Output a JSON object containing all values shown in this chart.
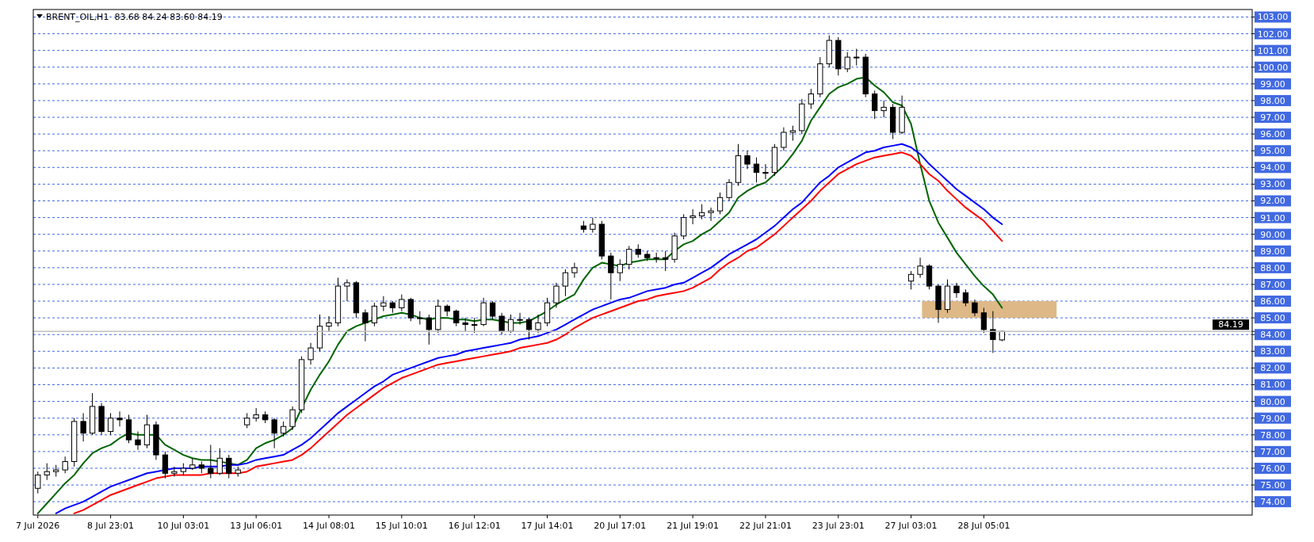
{
  "chart_data": {
    "type": "candlestick",
    "title": "BRENT_OIL,H1  83.68 84.24 83.60 84.19",
    "categories": [
      "7 Jul 2026",
      null,
      null,
      null,
      null,
      null,
      null,
      null,
      "8 Jul 23:01",
      null,
      null,
      null,
      null,
      null,
      null,
      null,
      "10 Jul 03:01",
      null,
      null,
      null,
      null,
      null,
      null,
      null,
      "13 Jul 06:01",
      null,
      null,
      null,
      null,
      null,
      null,
      null,
      "14 Jul 08:01",
      null,
      null,
      null,
      null,
      null,
      null,
      null,
      "15 Jul 10:01",
      null,
      null,
      null,
      null,
      null,
      null,
      null,
      "16 Jul 12:01",
      null,
      null,
      null,
      null,
      null,
      null,
      null,
      "17 Jul 14:01",
      null,
      null,
      null,
      null,
      null,
      null,
      null,
      "20 Jul 17:01",
      null,
      null,
      null,
      null,
      null,
      null,
      null,
      "21 Jul 19:01",
      null,
      null,
      null,
      null,
      null,
      null,
      null,
      "22 Jul 21:01",
      null,
      null,
      null,
      null,
      null,
      null,
      null,
      "23 Jul 23:01",
      null,
      null,
      null,
      null,
      null,
      null,
      null,
      "27 Jul 03:01",
      null,
      null,
      null,
      null,
      null,
      null,
      null,
      "28 Jul 05:01",
      null,
      null
    ],
    "ohlc": [
      [
        74.8,
        75.8,
        74.5,
        75.6
      ],
      [
        75.6,
        76.3,
        75.3,
        75.8
      ],
      [
        75.8,
        76.2,
        75.5,
        75.9
      ],
      [
        75.9,
        76.7,
        75.7,
        76.4
      ],
      [
        76.4,
        79.0,
        76.1,
        78.8
      ],
      [
        78.8,
        79.3,
        77.6,
        78.1
      ],
      [
        78.1,
        80.5,
        78.0,
        79.7
      ],
      [
        79.7,
        79.9,
        78.0,
        78.2
      ],
      [
        78.2,
        79.3,
        78.0,
        79.0
      ],
      [
        79.0,
        79.4,
        78.5,
        78.9
      ],
      [
        78.9,
        79.2,
        77.5,
        77.7
      ],
      [
        77.7,
        78.2,
        77.1,
        77.4
      ],
      [
        77.4,
        79.2,
        77.2,
        78.6
      ],
      [
        78.6,
        78.8,
        76.5,
        76.8
      ],
      [
        76.8,
        77.0,
        75.4,
        75.7
      ],
      [
        75.7,
        76.1,
        75.5,
        75.8
      ],
      [
        75.8,
        76.3,
        75.6,
        76.0
      ],
      [
        76.0,
        76.6,
        75.9,
        76.2
      ],
      [
        76.2,
        76.4,
        75.7,
        76.0
      ],
      [
        76.0,
        77.4,
        75.4,
        75.7
      ],
      [
        75.7,
        77.2,
        75.6,
        76.6
      ],
      [
        76.6,
        76.8,
        75.4,
        75.7
      ],
      [
        75.7,
        76.1,
        75.5,
        75.9
      ],
      [
        78.6,
        79.3,
        78.4,
        79.0
      ],
      [
        79.0,
        79.6,
        78.8,
        79.2
      ],
      [
        79.2,
        79.4,
        78.7,
        78.9
      ],
      [
        78.9,
        79.0,
        77.2,
        78.1
      ],
      [
        78.1,
        78.8,
        77.9,
        78.5
      ],
      [
        78.5,
        79.7,
        78.3,
        79.5
      ],
      [
        79.5,
        82.7,
        79.3,
        82.5
      ],
      [
        82.5,
        83.5,
        82.2,
        83.2
      ],
      [
        83.2,
        85.2,
        83.0,
        84.5
      ],
      [
        84.5,
        85.1,
        84.2,
        84.7
      ],
      [
        84.7,
        87.4,
        84.5,
        86.9
      ],
      [
        86.9,
        87.3,
        86.0,
        87.1
      ],
      [
        87.1,
        87.2,
        85.0,
        85.3
      ],
      [
        85.3,
        85.5,
        83.6,
        84.7
      ],
      [
        84.7,
        85.9,
        84.5,
        85.7
      ],
      [
        85.7,
        86.3,
        85.4,
        85.9
      ],
      [
        85.9,
        86.0,
        85.3,
        85.6
      ],
      [
        85.6,
        86.4,
        85.4,
        86.1
      ],
      [
        86.1,
        86.2,
        84.8,
        85.0
      ],
      [
        85.0,
        85.4,
        84.6,
        85.0
      ],
      [
        85.0,
        85.2,
        83.4,
        84.3
      ],
      [
        84.3,
        86.1,
        84.1,
        85.7
      ],
      [
        85.7,
        85.8,
        85.1,
        85.4
      ],
      [
        85.4,
        85.5,
        84.5,
        84.7
      ],
      [
        84.7,
        85.0,
        84.2,
        84.6
      ],
      [
        84.6,
        85.0,
        84.1,
        84.6
      ],
      [
        84.6,
        86.2,
        84.5,
        85.9
      ],
      [
        85.9,
        86.0,
        84.9,
        85.1
      ],
      [
        85.1,
        85.3,
        84.0,
        84.2
      ],
      [
        84.2,
        85.2,
        84.1,
        84.9
      ],
      [
        84.9,
        85.3,
        84.6,
        84.9
      ],
      [
        84.9,
        85.0,
        83.7,
        84.3
      ],
      [
        84.3,
        85.2,
        84.1,
        84.7
      ],
      [
        84.7,
        86.2,
        84.5,
        85.9
      ],
      [
        85.9,
        87.1,
        85.6,
        86.9
      ],
      [
        86.9,
        87.9,
        86.3,
        87.7
      ],
      [
        87.7,
        88.3,
        87.4,
        88.0
      ],
      [
        90.5,
        90.8,
        90.1,
        90.3
      ],
      [
        90.3,
        91.0,
        90.1,
        90.6
      ],
      [
        90.6,
        90.8,
        88.5,
        88.7
      ],
      [
        88.7,
        88.9,
        86.1,
        87.7
      ],
      [
        87.7,
        88.5,
        87.2,
        88.2
      ],
      [
        88.2,
        89.3,
        87.9,
        89.1
      ],
      [
        89.1,
        89.4,
        88.6,
        88.8
      ],
      [
        88.8,
        89.0,
        88.4,
        88.6
      ],
      [
        88.6,
        88.9,
        88.3,
        88.6
      ],
      [
        88.6,
        89.0,
        87.8,
        88.5
      ],
      [
        88.5,
        90.1,
        88.3,
        89.9
      ],
      [
        89.9,
        91.2,
        89.7,
        91.0
      ],
      [
        91.0,
        91.5,
        90.6,
        91.1
      ],
      [
        91.1,
        91.8,
        90.9,
        91.3
      ],
      [
        91.3,
        91.6,
        90.8,
        91.4
      ],
      [
        91.4,
        92.5,
        91.2,
        92.2
      ],
      [
        92.2,
        93.3,
        92.0,
        93.1
      ],
      [
        93.1,
        95.4,
        92.9,
        94.7
      ],
      [
        94.7,
        95.0,
        93.9,
        94.2
      ],
      [
        94.2,
        94.6,
        93.1,
        93.7
      ],
      [
        93.7,
        94.2,
        93.3,
        93.7
      ],
      [
        93.7,
        95.4,
        93.5,
        95.2
      ],
      [
        95.2,
        96.4,
        95.0,
        96.1
      ],
      [
        96.1,
        96.5,
        95.6,
        96.2
      ],
      [
        96.2,
        98.1,
        96.0,
        97.8
      ],
      [
        97.8,
        98.7,
        97.5,
        98.4
      ],
      [
        98.4,
        100.6,
        98.2,
        100.2
      ],
      [
        100.2,
        101.9,
        100.0,
        101.6
      ],
      [
        101.6,
        101.8,
        99.5,
        99.9
      ],
      [
        99.9,
        100.9,
        99.7,
        100.6
      ],
      [
        100.6,
        101.1,
        100.1,
        100.6
      ],
      [
        100.6,
        100.8,
        98.2,
        98.4
      ],
      [
        98.4,
        98.6,
        96.9,
        97.4
      ],
      [
        97.4,
        98.0,
        97.0,
        97.6
      ],
      [
        97.6,
        97.8,
        95.7,
        96.1
      ],
      [
        96.1,
        98.3,
        96.0,
        97.6
      ],
      [
        87.2,
        87.8,
        86.7,
        87.6
      ],
      [
        87.6,
        88.6,
        87.4,
        88.1
      ],
      [
        88.1,
        88.2,
        86.7,
        86.9
      ],
      [
        86.9,
        87.0,
        84.7,
        85.5
      ],
      [
        85.5,
        87.3,
        85.3,
        86.9
      ],
      [
        86.9,
        87.1,
        86.2,
        86.5
      ],
      [
        86.5,
        86.7,
        85.7,
        85.9
      ],
      [
        85.9,
        86.1,
        85.1,
        85.3
      ],
      [
        85.3,
        85.6,
        84.1,
        84.3
      ],
      [
        84.3,
        85.4,
        82.9,
        83.7
      ],
      [
        83.68,
        84.24,
        83.6,
        84.19
      ]
    ],
    "series": [
      {
        "type": "line",
        "color": "#006400",
        "values": [
          73.3,
          73.9,
          74.5,
          75.1,
          75.6,
          76.3,
          76.9,
          77.2,
          77.4,
          77.8,
          78.1,
          78.0,
          78.0,
          78.0,
          77.4,
          77.1,
          76.8,
          76.6,
          76.5,
          76.5,
          76.4,
          76.3,
          76.2,
          76.5,
          77.2,
          77.5,
          77.7,
          78.0,
          78.4,
          79.6,
          80.7,
          81.6,
          82.4,
          83.4,
          84.2,
          84.5,
          84.7,
          84.9,
          85.1,
          85.2,
          85.3,
          85.2,
          85.0,
          84.9,
          85.0,
          85.0,
          84.9,
          84.9,
          84.8,
          84.9,
          84.9,
          84.8,
          84.7,
          84.7,
          84.8,
          85.1,
          85.4,
          85.8,
          86.1,
          86.4,
          87.3,
          88.0,
          88.3,
          88.2,
          88.1,
          88.3,
          88.4,
          88.5,
          88.5,
          88.5,
          89.0,
          89.4,
          89.6,
          90.0,
          90.3,
          90.8,
          91.3,
          92.2,
          92.6,
          92.9,
          93.1,
          93.6,
          94.1,
          94.8,
          95.6,
          96.8,
          97.6,
          98.4,
          98.8,
          99.0,
          99.3,
          99.4,
          98.9,
          98.5,
          97.9,
          97.7,
          96.6,
          94.2,
          92.0,
          90.7,
          89.8,
          88.9,
          88.2,
          87.5,
          86.9,
          86.4,
          85.6
        ]
      },
      {
        "type": "line",
        "color": "#0000ff",
        "values": [
          null,
          null,
          73.3,
          73.6,
          73.8,
          74.0,
          74.3,
          74.6,
          74.9,
          75.1,
          75.3,
          75.5,
          75.7,
          75.8,
          75.9,
          76.0,
          76.0,
          76.0,
          76.1,
          76.1,
          76.1,
          76.2,
          76.2,
          76.3,
          76.5,
          76.6,
          76.7,
          76.8,
          77.1,
          77.4,
          77.8,
          78.3,
          78.8,
          79.3,
          79.7,
          80.1,
          80.5,
          80.9,
          81.2,
          81.6,
          81.8,
          82.0,
          82.2,
          82.4,
          82.6,
          82.7,
          82.8,
          83.0,
          83.1,
          83.2,
          83.3,
          83.4,
          83.5,
          83.7,
          83.8,
          83.9,
          84.1,
          84.3,
          84.6,
          84.9,
          85.2,
          85.5,
          85.7,
          85.9,
          86.1,
          86.2,
          86.4,
          86.6,
          86.7,
          86.8,
          87.0,
          87.1,
          87.4,
          87.7,
          88.0,
          88.4,
          88.8,
          89.1,
          89.4,
          89.7,
          90.1,
          90.5,
          91.0,
          91.5,
          91.9,
          92.5,
          93.1,
          93.5,
          94.0,
          94.3,
          94.6,
          94.9,
          95.0,
          95.2,
          95.3,
          95.4,
          95.2,
          94.8,
          94.2,
          93.7,
          93.2,
          92.7,
          92.3,
          91.9,
          91.5,
          91.0,
          90.6
        ]
      },
      {
        "type": "line",
        "color": "#ff0000",
        "values": [
          null,
          null,
          null,
          null,
          73.3,
          73.5,
          73.8,
          74.1,
          74.4,
          74.6,
          74.8,
          75.0,
          75.2,
          75.4,
          75.5,
          75.6,
          75.6,
          75.6,
          75.6,
          75.7,
          75.7,
          75.7,
          75.7,
          75.8,
          76.1,
          76.2,
          76.3,
          76.4,
          76.5,
          76.8,
          77.2,
          77.7,
          78.2,
          78.7,
          79.2,
          79.6,
          80.0,
          80.4,
          80.8,
          81.1,
          81.4,
          81.6,
          81.8,
          82.0,
          82.2,
          82.3,
          82.4,
          82.5,
          82.6,
          82.7,
          82.8,
          82.9,
          83.0,
          83.2,
          83.3,
          83.4,
          83.5,
          83.7,
          84.0,
          84.4,
          84.7,
          85.0,
          85.2,
          85.4,
          85.6,
          85.8,
          86.0,
          86.1,
          86.3,
          86.4,
          86.5,
          86.6,
          86.8,
          87.1,
          87.4,
          87.9,
          88.3,
          88.6,
          89.0,
          89.2,
          89.6,
          90.0,
          90.5,
          91.0,
          91.5,
          92.0,
          92.6,
          93.1,
          93.6,
          93.9,
          94.2,
          94.4,
          94.6,
          94.7,
          94.8,
          94.9,
          94.7,
          94.2,
          93.6,
          93.2,
          92.6,
          92.1,
          91.6,
          91.2,
          90.8,
          90.2,
          89.6
        ]
      }
    ],
    "ylim": [
      73.2,
      103.45
    ],
    "yticks": [
      {
        "value": 74,
        "label": "74.00"
      },
      {
        "value": 75,
        "label": "75.00"
      },
      {
        "value": 76,
        "label": "76.00"
      },
      {
        "value": 77,
        "label": "77.00"
      },
      {
        "value": 78,
        "label": "78.00"
      },
      {
        "value": 79,
        "label": "79.00"
      },
      {
        "value": 80,
        "label": "80.00"
      },
      {
        "value": 81,
        "label": "81.00"
      },
      {
        "value": 82,
        "label": "82.00"
      },
      {
        "value": 83,
        "label": "83.00"
      },
      {
        "value": 84,
        "label": "84.00"
      },
      {
        "value": 85,
        "label": "85.00"
      },
      {
        "value": 86,
        "label": "86.00"
      },
      {
        "value": 87,
        "label": "87.00"
      },
      {
        "value": 88,
        "label": "88.00"
      },
      {
        "value": 89,
        "label": "89.00"
      },
      {
        "value": 90,
        "label": "90.00"
      },
      {
        "value": 91,
        "label": "91.00"
      },
      {
        "value": 92,
        "label": "92.00"
      },
      {
        "value": 93,
        "label": "93.00"
      },
      {
        "value": 94,
        "label": "94.00"
      },
      {
        "value": 95,
        "label": "95.00"
      },
      {
        "value": 96,
        "label": "96.00"
      },
      {
        "value": 97,
        "label": "97.00"
      },
      {
        "value": 98,
        "label": "98.00"
      },
      {
        "value": 99,
        "label": "99.00"
      },
      {
        "value": 100,
        "label": "100.00"
      },
      {
        "value": 101,
        "label": "101.00"
      },
      {
        "value": 102,
        "label": "102.00"
      },
      {
        "value": 103,
        "label": "103.00"
      }
    ],
    "grid": "y",
    "ref_lines": [
      {
        "axis": "y",
        "value": 84.19,
        "label": "84.19",
        "color": "#c0c0c0"
      }
    ],
    "bands": [
      {
        "axis": "y",
        "from": 85,
        "to": 86,
        "color": "#deb887"
      }
    ]
  }
}
